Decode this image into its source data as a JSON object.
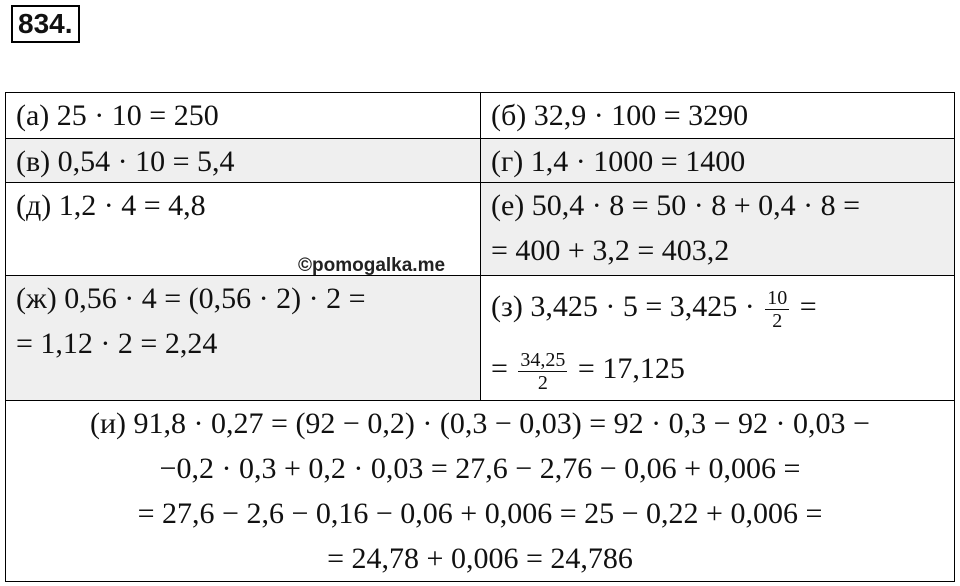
{
  "title": "834.",
  "watermark": "©pomogalka.me",
  "cells": [
    {
      "lines": [
        "(а) 25 · 10 = 250"
      ]
    },
    {
      "lines": [
        "(б) 32,9 · 100 = 3290"
      ]
    },
    {
      "lines": [
        "(в) 0,54 · 10 = 5,4"
      ]
    },
    {
      "lines": [
        "(г) 1,4 · 1000 = 1400"
      ]
    },
    {
      "lines": [
        "(д) 1,2 · 4 = 4,8"
      ]
    },
    {
      "lines": [
        "(е) 50,4 · 8 = 50 · 8 + 0,4 · 8 =",
        "= 400 + 3,2 = 403,2"
      ]
    },
    {
      "lines": [
        "(ж) 0,56 · 4 = (0,56 · 2) · 2 =",
        "= 1,12 · 2 = 2,24"
      ]
    },
    {
      "lines": [
        [
          "(з) 3,425 · 5 = 3,425 · ",
          {
            "num": "10",
            "den": "2"
          },
          " ="
        ],
        [
          "= ",
          {
            "num": "34,25",
            "den": "2"
          },
          " = 17,125"
        ]
      ]
    },
    {
      "lines": [
        "(и) 91,8 · 0,27 = (92 − 0,2) · (0,3 − 0,03) = 92 · 0,3 − 92 · 0,03 −",
        "−0,2 · 0,3 + 0,2 · 0,03 = 27,6 − 2,76 − 0,06 + 0,006 =",
        "= 27,6 − 2,6 − 0,16 − 0,06 + 0,006 = 25 − 0,22 + 0,006 =",
        "= 24,78 + 0,006 = 24,786"
      ]
    }
  ]
}
